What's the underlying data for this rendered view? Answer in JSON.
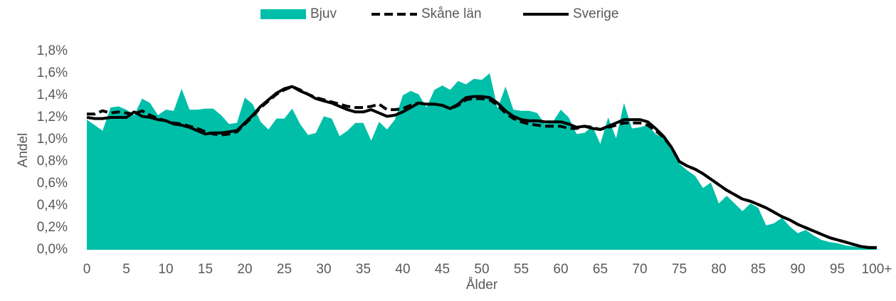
{
  "chart_data": {
    "type": "line",
    "x_label": "Ålder",
    "y_label": "Andel",
    "legend": "top",
    "categories": [
      "0",
      null,
      null,
      null,
      null,
      "5",
      null,
      null,
      null,
      null,
      "10",
      null,
      null,
      null,
      null,
      "15",
      null,
      null,
      null,
      null,
      "20",
      null,
      null,
      null,
      null,
      "25",
      null,
      null,
      null,
      null,
      "30",
      null,
      null,
      null,
      null,
      "35",
      null,
      null,
      null,
      null,
      "40",
      null,
      null,
      null,
      null,
      "45",
      null,
      null,
      null,
      null,
      "50",
      null,
      null,
      null,
      null,
      "55",
      null,
      null,
      null,
      null,
      "60",
      null,
      null,
      null,
      null,
      "65",
      null,
      null,
      null,
      null,
      "70",
      null,
      null,
      null,
      null,
      "75",
      null,
      null,
      null,
      null,
      "80",
      null,
      null,
      null,
      null,
      "85",
      null,
      null,
      null,
      null,
      "90",
      null,
      null,
      null,
      null,
      "95",
      null,
      null,
      null,
      null,
      "100+"
    ],
    "ylim": [
      0,
      1.8
    ],
    "yticks": [
      {
        "value": 0,
        "label": "0,0%"
      },
      {
        "value": 0.2,
        "label": "0,2%"
      },
      {
        "value": 0.4,
        "label": "0,4%"
      },
      {
        "value": 0.6,
        "label": "0,6%"
      },
      {
        "value": 0.8,
        "label": "0,8%"
      },
      {
        "value": 1.0,
        "label": "1,0%"
      },
      {
        "value": 1.2,
        "label": "1,2%"
      },
      {
        "value": 1.4,
        "label": "1,4%"
      },
      {
        "value": 1.6,
        "label": "1,6%"
      },
      {
        "value": 1.8,
        "label": "1,8%"
      }
    ],
    "series": [
      {
        "name": "Bjuv",
        "style": "area",
        "color": "#00bfa8",
        "values": [
          1.18,
          1.13,
          1.08,
          1.29,
          1.3,
          1.27,
          1.22,
          1.37,
          1.33,
          1.22,
          1.27,
          1.26,
          1.46,
          1.27,
          1.27,
          1.28,
          1.28,
          1.22,
          1.14,
          1.15,
          1.38,
          1.32,
          1.16,
          1.09,
          1.19,
          1.19,
          1.28,
          1.14,
          1.04,
          1.06,
          1.21,
          1.19,
          1.03,
          1.08,
          1.15,
          1.15,
          0.99,
          1.16,
          1.09,
          1.18,
          1.4,
          1.44,
          1.41,
          1.29,
          1.45,
          1.49,
          1.45,
          1.53,
          1.5,
          1.55,
          1.54,
          1.6,
          1.28,
          1.48,
          1.27,
          1.26,
          1.26,
          1.24,
          1.14,
          1.16,
          1.27,
          1.2,
          1.05,
          1.06,
          1.12,
          0.96,
          1.2,
          1.01,
          1.33,
          1.1,
          1.11,
          1.13,
          1.05,
          1.01,
          0.92,
          0.78,
          0.72,
          0.67,
          0.56,
          0.61,
          0.42,
          0.49,
          0.42,
          0.35,
          0.42,
          0.38,
          0.22,
          0.24,
          0.29,
          0.21,
          0.15,
          0.18,
          0.13,
          0.09,
          0.07,
          0.06,
          0.04,
          0.03,
          0.02,
          0.01,
          0.01
        ]
      },
      {
        "name": "Skåne län",
        "style": "dashed",
        "color": "#000000",
        "values": [
          1.23,
          1.23,
          1.26,
          1.24,
          1.25,
          1.24,
          1.23,
          1.26,
          1.22,
          1.19,
          1.17,
          1.15,
          1.14,
          1.12,
          1.1,
          1.07,
          1.05,
          1.04,
          1.05,
          1.07,
          1.14,
          1.21,
          1.29,
          1.35,
          1.41,
          1.45,
          1.48,
          1.45,
          1.41,
          1.38,
          1.36,
          1.34,
          1.32,
          1.3,
          1.29,
          1.29,
          1.3,
          1.32,
          1.27,
          1.27,
          1.28,
          1.31,
          1.33,
          1.32,
          1.32,
          1.31,
          1.28,
          1.31,
          1.36,
          1.37,
          1.37,
          1.36,
          1.31,
          1.24,
          1.19,
          1.16,
          1.14,
          1.13,
          1.12,
          1.12,
          1.12,
          1.1,
          1.1,
          1.12,
          1.11,
          1.09,
          1.11,
          1.13,
          1.15,
          1.15,
          1.15,
          1.13,
          1.08,
          1.02,
          0.93,
          0.8,
          0.76,
          0.73,
          0.69,
          0.64,
          0.59,
          0.54,
          0.5,
          0.46,
          0.44,
          0.41,
          0.38,
          0.34,
          0.3,
          0.27,
          0.23,
          0.2,
          0.17,
          0.14,
          0.11,
          0.09,
          0.07,
          0.05,
          0.03,
          0.02,
          0.02
        ]
      },
      {
        "name": "Sverige",
        "style": "solid",
        "color": "#000000",
        "values": [
          1.2,
          1.19,
          1.19,
          1.2,
          1.2,
          1.2,
          1.25,
          1.21,
          1.2,
          1.18,
          1.17,
          1.14,
          1.13,
          1.11,
          1.08,
          1.05,
          1.06,
          1.06,
          1.07,
          1.08,
          1.15,
          1.22,
          1.3,
          1.36,
          1.42,
          1.46,
          1.48,
          1.44,
          1.41,
          1.37,
          1.35,
          1.33,
          1.3,
          1.27,
          1.25,
          1.25,
          1.27,
          1.24,
          1.21,
          1.22,
          1.25,
          1.29,
          1.33,
          1.32,
          1.32,
          1.31,
          1.28,
          1.32,
          1.38,
          1.39,
          1.39,
          1.38,
          1.33,
          1.26,
          1.21,
          1.18,
          1.17,
          1.17,
          1.16,
          1.16,
          1.16,
          1.14,
          1.11,
          1.12,
          1.1,
          1.09,
          1.12,
          1.15,
          1.18,
          1.18,
          1.18,
          1.16,
          1.1,
          1.03,
          0.93,
          0.8,
          0.76,
          0.73,
          0.69,
          0.64,
          0.59,
          0.54,
          0.5,
          0.46,
          0.44,
          0.41,
          0.38,
          0.34,
          0.3,
          0.27,
          0.23,
          0.2,
          0.17,
          0.14,
          0.11,
          0.09,
          0.07,
          0.05,
          0.03,
          0.02,
          0.02
        ]
      }
    ]
  }
}
